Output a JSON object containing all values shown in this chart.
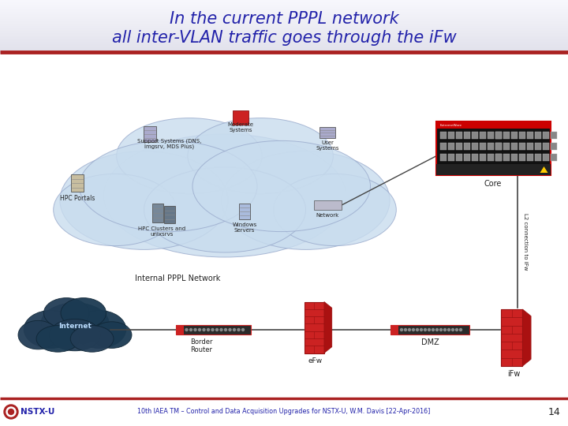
{
  "title_line1": "In the current PPPL network",
  "title_line2": "all inter-VLAN traffic goes through the iFw",
  "title_color": "#2222AA",
  "title_fontsize": 15,
  "slide_bg": "#FFFFFF",
  "header_bg_top": "#E8E8EC",
  "header_bg_bot": "#CCCCCC",
  "separator_color": "#AA2222",
  "footer_text": "10th IAEA TM – Control and Data Acquisition Upgrades for NSTX-U, W.M. Davis [22-Apr-2016]",
  "footer_page": "14",
  "footer_logo_text": "NSTX-U",
  "footer_color": "#2222AA",
  "cloud_fill": "#C8DCEE",
  "cloud_edge": "#99AACC",
  "internet_fill1": "#1A3A55",
  "internet_fill2": "#2A5A7A",
  "red_fw": "#CC2222",
  "red_fw_dark": "#991111",
  "red_fw_light": "#DD4444",
  "switch_fill": "#333333",
  "switch_red": "#CC2222",
  "line_color": "#444444",
  "label_color": "#222222",
  "rotated_label": "L2 connection to iFw",
  "core_label": "Core",
  "border_router_label": "Border\nRouter",
  "dmz_label": "DMZ",
  "efw_label": "eFw",
  "ifw_label": "iFw",
  "pppl_cloud_label": "Internal PPPL Network",
  "hpc_portals": "HPC Portals",
  "support_sys": "Support Systems (DNS,\nimgsrv, MDS Plus)",
  "moderate_sys": "Moderate\nSystems",
  "user_sys": "User\nSystems",
  "hpc_clusters": "HPC Clusters and\nunixsrvs",
  "windows_srv": "Windows\nServers",
  "network_lbl": "Network"
}
